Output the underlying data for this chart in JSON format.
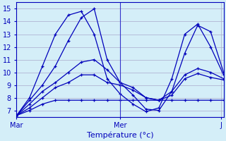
{
  "background_color": "#d4eef8",
  "grid_color": "#aaaacc",
  "line_color": "#0000bb",
  "xlabel": "Température (°c)",
  "xlim": [
    0,
    16
  ],
  "ylim": [
    6.5,
    15.5
  ],
  "yticks": [
    7,
    8,
    9,
    10,
    11,
    12,
    13,
    14,
    15
  ],
  "xtick_positions": [
    0,
    8,
    15.8
  ],
  "xtick_labels": [
    "Mar",
    "Mer",
    "J"
  ],
  "series": [
    [
      6.6,
      7.8,
      9.0,
      10.5,
      12.5,
      14.3,
      15.0,
      11.0,
      9.2,
      8.2,
      7.1,
      7.0,
      8.5,
      11.5,
      13.7,
      13.2,
      10.0,
      9.5
    ],
    [
      6.6,
      7.5,
      8.5,
      9.2,
      10.0,
      10.8,
      11.0,
      10.2,
      9.2,
      8.8,
      8.0,
      7.8,
      8.5,
      9.8,
      10.3,
      10.0,
      9.5,
      9.4
    ],
    [
      6.6,
      7.2,
      8.0,
      8.8,
      9.2,
      9.8,
      9.8,
      9.2,
      9.0,
      8.6,
      8.0,
      7.8,
      8.2,
      9.5,
      9.9,
      9.6,
      9.4,
      9.4
    ],
    [
      6.6,
      7.0,
      7.5,
      7.8,
      7.8,
      7.8,
      7.8,
      7.8,
      7.8,
      7.8,
      7.8,
      7.8,
      7.8,
      7.8,
      7.8,
      7.8,
      7.8,
      7.8
    ],
    [
      6.6,
      8.0,
      10.5,
      13.0,
      14.5,
      14.8,
      13.0,
      9.5,
      8.3,
      7.5,
      6.9,
      7.2,
      9.5,
      13.0,
      13.8,
      12.0,
      9.8,
      9.5
    ]
  ],
  "vline_x": 8,
  "vline_color": "#3333cc"
}
